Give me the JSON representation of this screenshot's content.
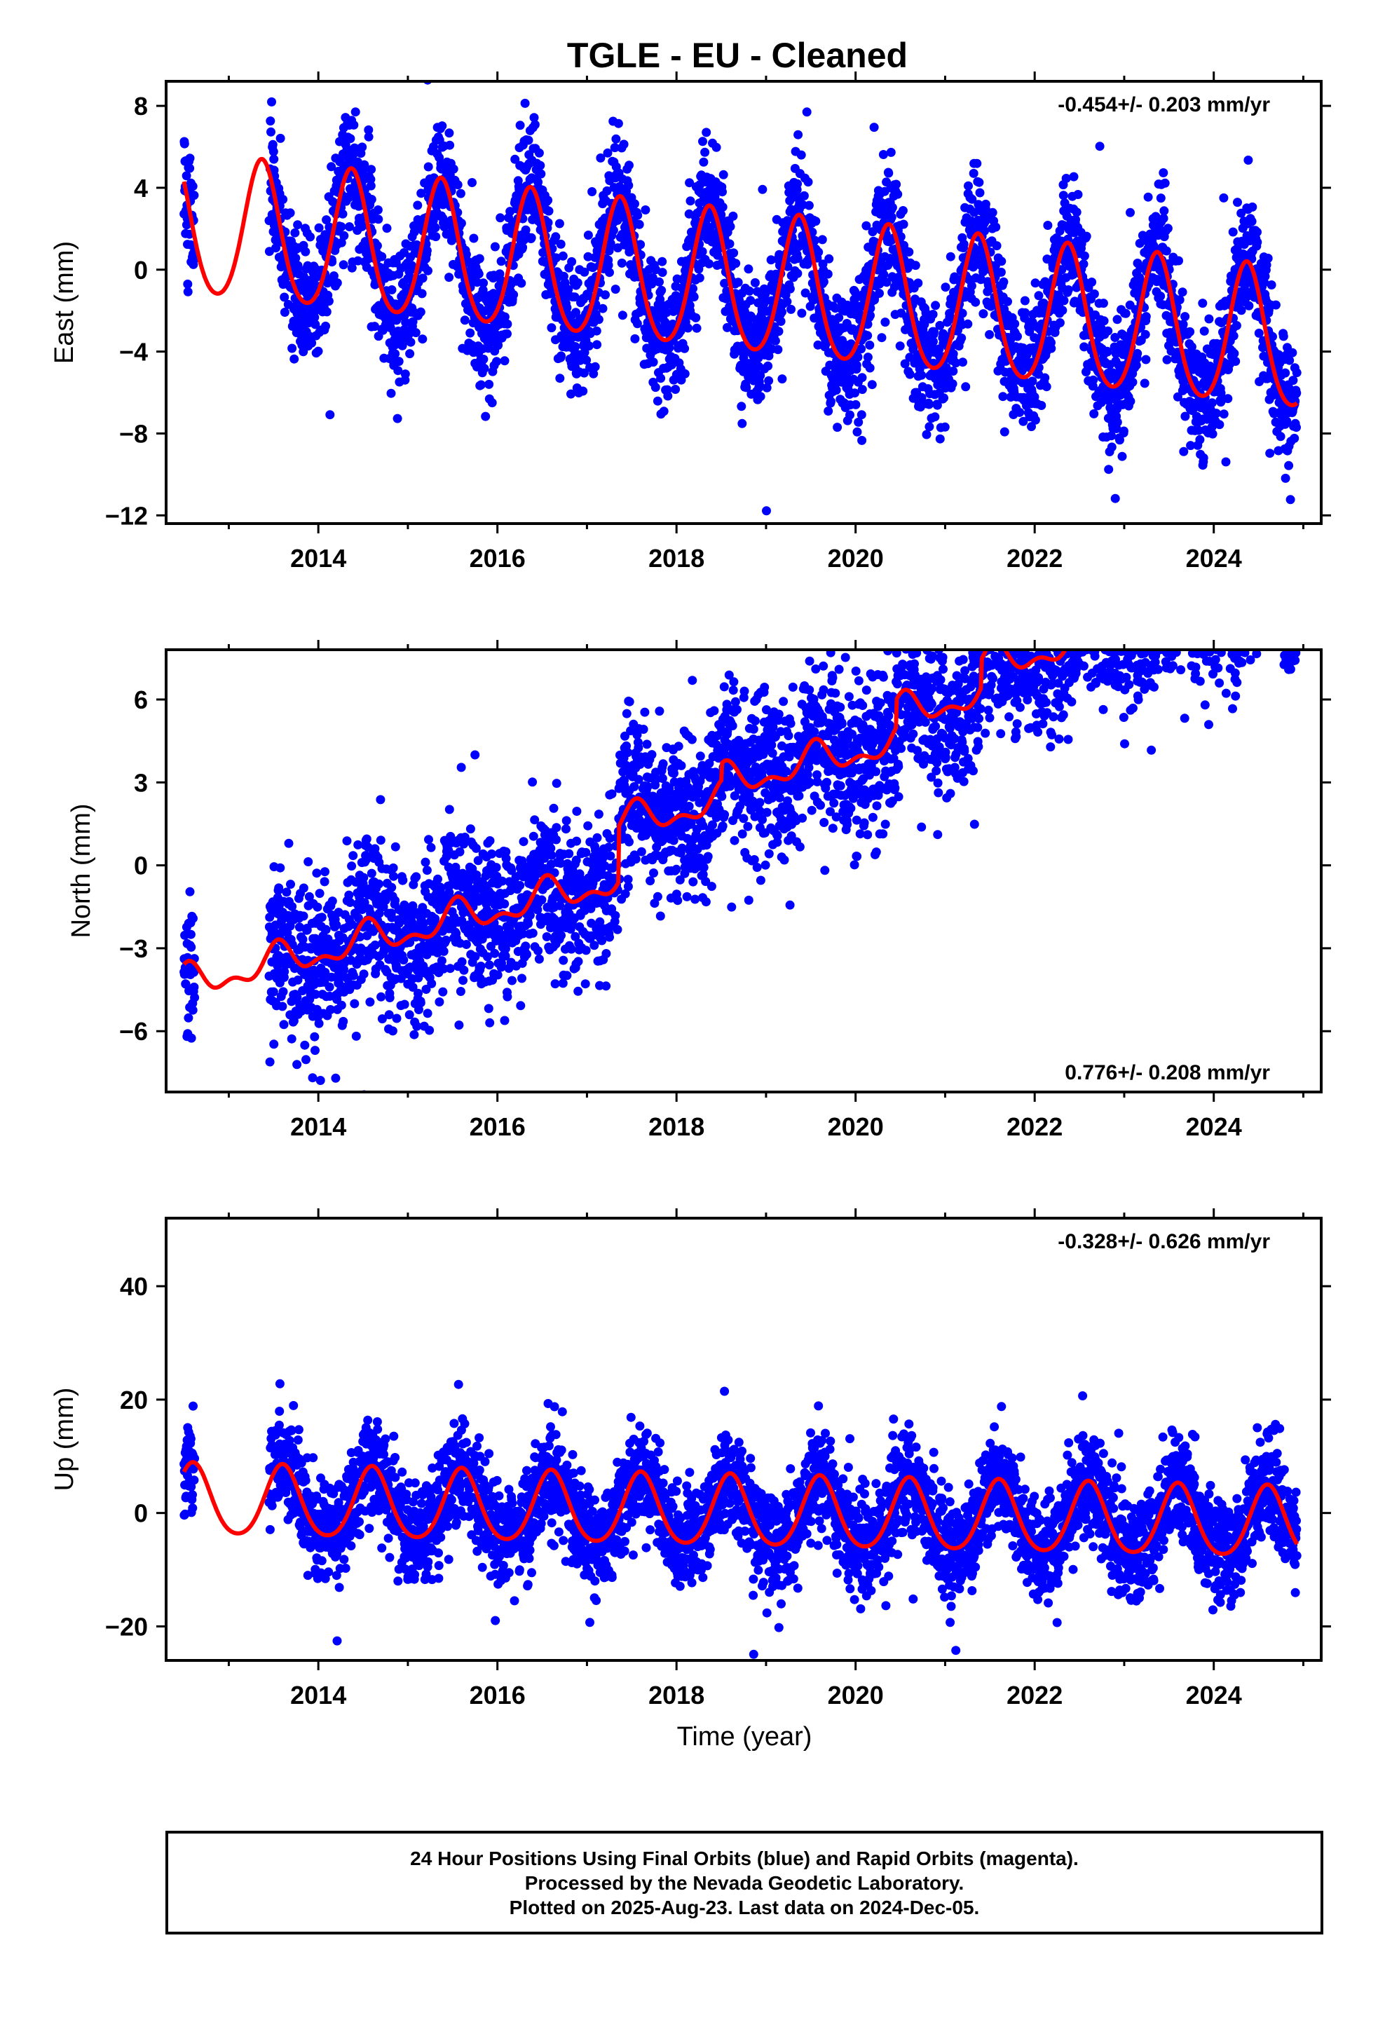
{
  "title": "TGLE  - EU - Cleaned",
  "colors": {
    "points": "#0000ff",
    "fit": "#ff0000",
    "frame": "#000000"
  },
  "chart_data": [
    {
      "type": "scatter",
      "panel": "east",
      "ylabel": "East (mm)",
      "xlabel": "",
      "xlim": [
        2012.3,
        2025.2
      ],
      "ylim": [
        -12.4,
        9.2
      ],
      "x_ticks": [
        2014,
        2016,
        2018,
        2020,
        2022,
        2024
      ],
      "y_ticks": [
        -12,
        -8,
        -4,
        0,
        4,
        8
      ],
      "y_tick_labels": [
        "−12",
        "−8",
        "−4",
        "0",
        "4",
        "8"
      ],
      "rate_label": "-0.454+/- 0.203 mm/yr",
      "rate_label_position": "top-right",
      "grid": false,
      "series": [
        {
          "kind": "points",
          "color": "#0000ff",
          "description_units": "mm"
        },
        {
          "kind": "fit",
          "color": "#ff0000"
        }
      ],
      "model": {
        "offset": 2.0,
        "rate": -0.454,
        "annual_amplitude": 3.4,
        "annual_peak": 0.37,
        "semiannual_amplitude": 0.4,
        "scatter": 1.6
      },
      "data_start": 2012.5,
      "data_gap_start": 2012.62,
      "data_gap_end": 2013.45,
      "data_end": 2024.93
    },
    {
      "type": "scatter",
      "panel": "north",
      "ylabel": "North (mm)",
      "xlabel": "",
      "xlim": [
        2012.3,
        2025.2
      ],
      "ylim": [
        -8.2,
        7.8
      ],
      "x_ticks": [
        2014,
        2016,
        2018,
        2020,
        2022,
        2024
      ],
      "y_ticks": [
        -6,
        -3,
        0,
        3,
        6
      ],
      "y_tick_labels": [
        "−6",
        "−3",
        "0",
        "3",
        "6"
      ],
      "rate_label": "0.776+/- 0.208 mm/yr",
      "rate_label_position": "bottom-right",
      "grid": false,
      "series": [
        {
          "kind": "points",
          "color": "#0000ff"
        },
        {
          "kind": "fit",
          "color": "#ff0000"
        }
      ],
      "model": {
        "offset": -4.3,
        "rate": 0.776,
        "annual_amplitude": 0.5,
        "annual_peak": 0.55,
        "semiannual_amplitude": 0.3,
        "scatter": 1.4,
        "steps": [
          [
            2017.35,
            2.0
          ],
          [
            2018.5,
            0.6
          ],
          [
            2020.45,
            1.0
          ],
          [
            2021.4,
            1.0
          ]
        ]
      },
      "data_start": 2012.5,
      "data_gap_start": 2012.62,
      "data_gap_end": 2013.45,
      "data_end": 2024.93
    },
    {
      "type": "scatter",
      "panel": "up",
      "ylabel": "Up (mm)",
      "xlabel": "Time (year)",
      "xlim": [
        2012.3,
        2025.2
      ],
      "ylim": [
        -26,
        52
      ],
      "x_ticks": [
        2014,
        2016,
        2018,
        2020,
        2022,
        2024
      ],
      "y_ticks": [
        -20,
        0,
        20,
        40
      ],
      "y_tick_labels": [
        "−20",
        "0",
        "20",
        "40"
      ],
      "rate_label": "-0.328+/- 0.626 mm/yr",
      "rate_label_position": "top-right",
      "grid": false,
      "series": [
        {
          "kind": "points",
          "color": "#0000ff"
        },
        {
          "kind": "fit",
          "color": "#ff0000"
        }
      ],
      "model": {
        "offset": 2.0,
        "rate": -0.328,
        "annual_amplitude": 6.2,
        "annual_peak": 0.6,
        "semiannual_amplitude": 0.8,
        "scatter": 4.5
      },
      "data_start": 2012.5,
      "data_gap_start": 2012.62,
      "data_gap_end": 2013.45,
      "data_end": 2024.93
    }
  ],
  "footer": {
    "line1": "24 Hour Positions Using Final Orbits (blue) and Rapid Orbits (magenta).",
    "line2": "Processed by the Nevada Geodetic Laboratory.",
    "line3": "Plotted on 2025-Aug-23. Last data on 2024-Dec-05."
  }
}
